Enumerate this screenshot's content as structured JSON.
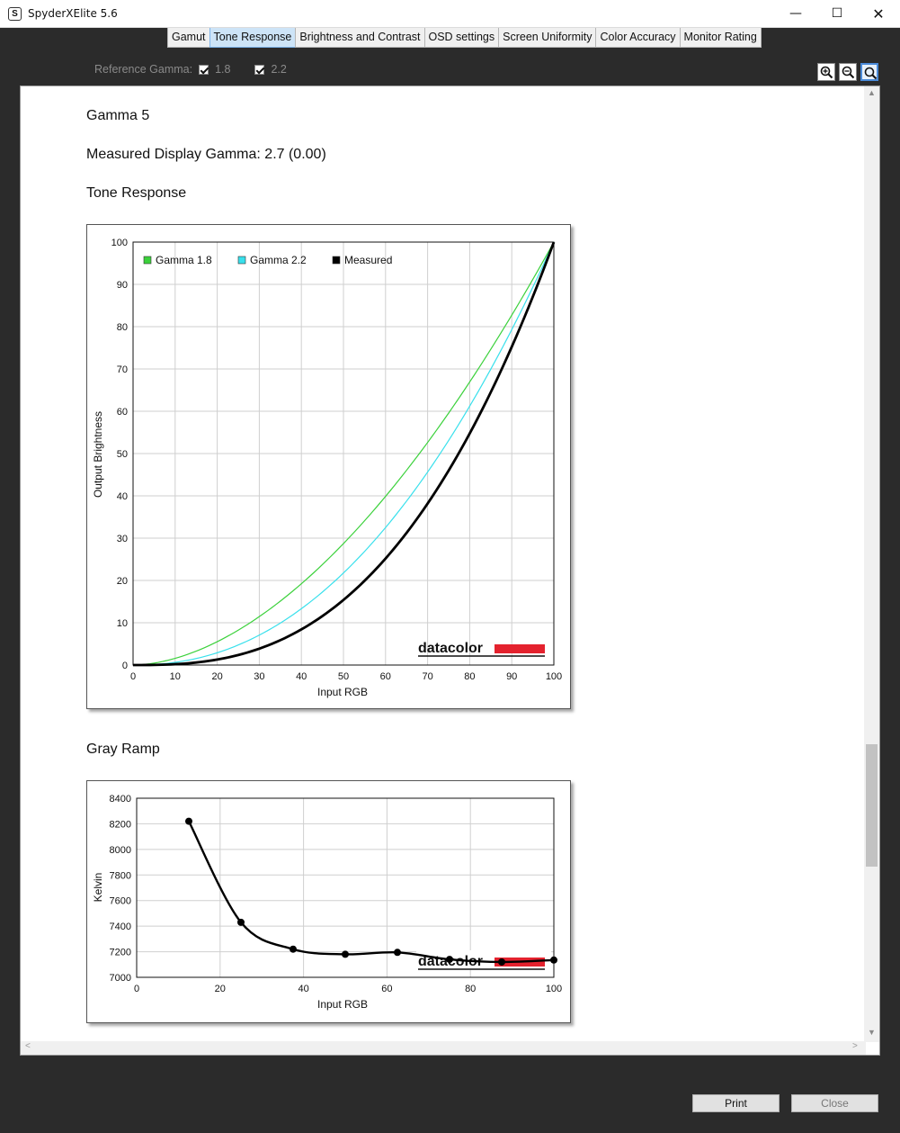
{
  "window": {
    "title": "SpyderXElite 5.6",
    "app_icon_letter": "S",
    "min_glyph": "—",
    "max_glyph": "☐",
    "close_glyph": "✕"
  },
  "tabs": [
    {
      "label": "Gamut",
      "active": false
    },
    {
      "label": "Tone Response",
      "active": true
    },
    {
      "label": "Brightness and Contrast",
      "active": false
    },
    {
      "label": "OSD settings",
      "active": false
    },
    {
      "label": "Screen Uniformity",
      "active": false
    },
    {
      "label": "Color Accuracy",
      "active": false
    },
    {
      "label": "Monitor Rating",
      "active": false
    }
  ],
  "reference_gamma": {
    "label": "Reference Gamma:",
    "options": [
      {
        "label": "1.8",
        "checked": true
      },
      {
        "label": "2.2",
        "checked": true
      }
    ]
  },
  "zoom": {
    "icons": [
      "zoom-in-icon",
      "zoom-out-icon",
      "zoom-fit-icon"
    ],
    "selected": "zoom-fit-icon"
  },
  "report": {
    "heading": "Gamma 5",
    "measured_gamma": "Measured Display Gamma: 2.7 (0.00)",
    "tone_section": "Tone Response",
    "gray_section": "Gray Ramp"
  },
  "brand": {
    "logo_text": "datacolor",
    "logo_color": "#e4222e"
  },
  "buttons": {
    "print": "Print",
    "close": "Close"
  },
  "chart_data": [
    {
      "type": "line",
      "xlabel": "Input RGB",
      "ylabel": "Output Brightness",
      "xlim": [
        0,
        100
      ],
      "ylim": [
        0,
        100
      ],
      "xticks": [
        "0",
        "10",
        "20",
        "30",
        "40",
        "50",
        "60",
        "70",
        "80",
        "90",
        "100"
      ],
      "yticks": [
        "0",
        "10",
        "20",
        "30",
        "40",
        "50",
        "60",
        "70",
        "80",
        "90",
        "100"
      ],
      "grid": true,
      "legend_position": "top-left",
      "series": [
        {
          "name": "Gamma 1.8",
          "color": "#3bd13b",
          "gamma": 1.8,
          "x": [
            0,
            10,
            20,
            30,
            40,
            50,
            60,
            70,
            80,
            90,
            100
          ],
          "y": [
            0,
            1.6,
            5.5,
            11.5,
            19.2,
            28.7,
            39.9,
            52.6,
            66.9,
            82.7,
            100
          ]
        },
        {
          "name": "Gamma 2.2",
          "color": "#38e0ec",
          "gamma": 2.2,
          "x": [
            0,
            10,
            20,
            30,
            40,
            50,
            60,
            70,
            80,
            90,
            100
          ],
          "y": [
            0,
            0.6,
            2.9,
            7.1,
            13.3,
            21.8,
            32.5,
            45.6,
            61.2,
            79.3,
            100
          ]
        },
        {
          "name": "Measured",
          "color": "#000000",
          "gamma": 2.7,
          "x": [
            0,
            10,
            20,
            30,
            40,
            50,
            60,
            70,
            80,
            90,
            100
          ],
          "y": [
            0,
            0.2,
            1.3,
            3.9,
            8.4,
            15.4,
            25.2,
            38.2,
            54.7,
            75.2,
            100
          ]
        }
      ]
    },
    {
      "type": "line",
      "xlabel": "Input RGB",
      "ylabel": "Kelvin",
      "xlim": [
        0,
        100
      ],
      "ylim": [
        7000,
        8400
      ],
      "xticks": [
        "0",
        "20",
        "40",
        "60",
        "80",
        "100"
      ],
      "yticks": [
        "7000",
        "7200",
        "7400",
        "7600",
        "7800",
        "8000",
        "8200",
        "8400"
      ],
      "grid": true,
      "series": [
        {
          "color": "#000000",
          "x": [
            12.5,
            25,
            37.5,
            50,
            62.5,
            75,
            87.5,
            100
          ],
          "y": [
            8220,
            7430,
            7220,
            7180,
            7195,
            7140,
            7120,
            7135
          ]
        }
      ]
    }
  ]
}
